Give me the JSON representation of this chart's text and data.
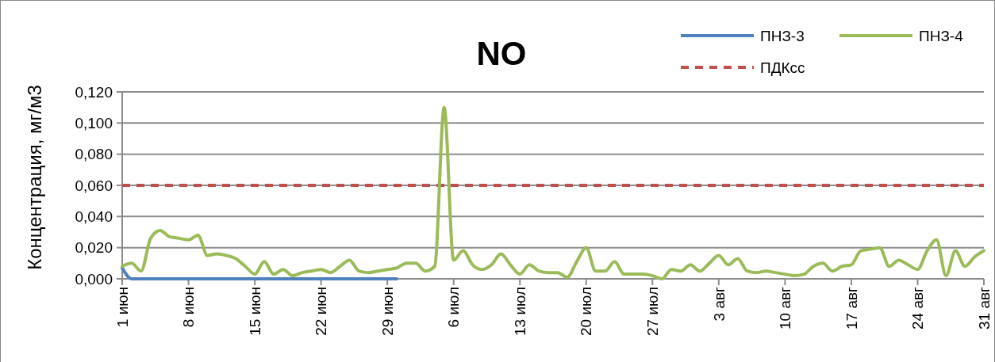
{
  "chart_data": {
    "type": "line",
    "title": "NO",
    "ylabel": "Концентрация, мг/м3",
    "x": [
      "--06-01",
      "--06-02",
      "--06-03",
      "--06-04",
      "--06-05",
      "--06-06",
      "--06-07",
      "--06-08",
      "--06-09",
      "--06-10",
      "--06-11",
      "--06-12",
      "--06-13",
      "--06-14",
      "--06-15",
      "--06-16",
      "--06-17",
      "--06-18",
      "--06-19",
      "--06-20",
      "--06-21",
      "--06-22",
      "--06-23",
      "--06-24",
      "--06-25",
      "--06-26",
      "--06-27",
      "--06-28",
      "--06-29",
      "--06-30",
      "--07-01",
      "--07-02",
      "--07-03",
      "--07-04",
      "--07-05",
      "--07-06",
      "--07-07",
      "--07-08",
      "--07-09",
      "--07-10",
      "--07-11",
      "--07-12",
      "--07-13",
      "--07-14",
      "--07-15",
      "--07-16",
      "--07-17",
      "--07-18",
      "--07-19",
      "--07-20",
      "--07-21",
      "--07-22",
      "--07-23",
      "--07-24",
      "--07-25",
      "--07-26",
      "--07-27",
      "--07-28",
      "--07-29",
      "--07-30",
      "--07-31",
      "--08-01",
      "--08-02",
      "--08-03",
      "--08-04",
      "--08-05",
      "--08-06",
      "--08-07",
      "--08-08",
      "--08-09",
      "--08-10",
      "--08-11",
      "--08-12",
      "--08-13",
      "--08-14",
      "--08-15",
      "--08-16",
      "--08-17",
      "--08-18",
      "--08-19",
      "--08-20",
      "--08-21",
      "--08-22",
      "--08-23",
      "--08-24",
      "--08-25",
      "--08-26",
      "--08-27",
      "--08-28",
      "--08-29",
      "--08-30",
      "--08-31"
    ],
    "series": [
      {
        "name": "ПНЗ-3",
        "color": "#4f81bd",
        "values": [
          0.007,
          0,
          0,
          0,
          0,
          0,
          0,
          0,
          0,
          0,
          0,
          0,
          0,
          0,
          0,
          0,
          0,
          0,
          0,
          0,
          0,
          0,
          0,
          0,
          0,
          0,
          0,
          0,
          0,
          0,
          null,
          null,
          null,
          null,
          null,
          null,
          null,
          null,
          null,
          null,
          null,
          null,
          null,
          null,
          null,
          null,
          null,
          null,
          null,
          null,
          null,
          null,
          null,
          null,
          null,
          null,
          null,
          null,
          null,
          null,
          null,
          null,
          null,
          null,
          null,
          null,
          null,
          null,
          null,
          null,
          null,
          null,
          null,
          null,
          null,
          null,
          null,
          null,
          null,
          null,
          null,
          null,
          null,
          null,
          null,
          null,
          null,
          null,
          null,
          null,
          null,
          null
        ]
      },
      {
        "name": "ПНЗ-4",
        "color": "#9bbb59",
        "values": [
          0.008,
          0.01,
          0.005,
          0.026,
          0.031,
          0.027,
          0.026,
          0.025,
          0.028,
          0.015,
          0.016,
          0.015,
          0.013,
          0.008,
          0.003,
          0.011,
          0.003,
          0.006,
          0.002,
          0.004,
          0.005,
          0.006,
          0.004,
          0.008,
          0.012,
          0.005,
          0.004,
          0.005,
          0.006,
          0.007,
          0.01,
          0.01,
          0.005,
          0.008,
          0.11,
          0.012,
          0.018,
          0.009,
          0.006,
          0.009,
          0.016,
          0.009,
          0.003,
          0.009,
          0.005,
          0.004,
          0.004,
          0.001,
          0.011,
          0.02,
          0.005,
          0.005,
          0.011,
          0.003,
          0.003,
          0.003,
          0.002,
          0.0,
          0.006,
          0.005,
          0.009,
          0.005,
          0.01,
          0.015,
          0.009,
          0.013,
          0.005,
          0.004,
          0.005,
          0.004,
          0.003,
          0.002,
          0.003,
          0.008,
          0.01,
          0.005,
          0.008,
          0.009,
          0.018,
          0.019,
          0.02,
          0.008,
          0.012,
          0.009,
          0.006,
          0.018,
          0.025,
          0.002,
          0.018,
          0.008,
          0.014,
          0.018
        ]
      }
    ],
    "ref_lines": [
      {
        "axis": "y",
        "value": 0.06,
        "label": "ПДКсс",
        "color": "#c0504d",
        "line_style": "dashed"
      }
    ],
    "xlim": [
      "--06-01",
      "--08-31"
    ],
    "xticks": [
      {
        "value": "--06-01",
        "label": "1 июн"
      },
      {
        "value": "--06-08",
        "label": "8 июн"
      },
      {
        "value": "--06-15",
        "label": "15 июн"
      },
      {
        "value": "--06-22",
        "label": "22 июн"
      },
      {
        "value": "--06-29",
        "label": "29 июн"
      },
      {
        "value": "--07-06",
        "label": "6 июл"
      },
      {
        "value": "--07-13",
        "label": "13 июл"
      },
      {
        "value": "--07-20",
        "label": "20 июл"
      },
      {
        "value": "--07-27",
        "label": "27 июл"
      },
      {
        "value": "--08-03",
        "label": "3 авг"
      },
      {
        "value": "--08-10",
        "label": "10 авг"
      },
      {
        "value": "--08-17",
        "label": "17 авг"
      },
      {
        "value": "--08-24",
        "label": "24 авг"
      },
      {
        "value": "--08-31",
        "label": "31 авг"
      }
    ],
    "ylim": [
      0,
      0.12
    ],
    "yticks": [
      {
        "value": 0,
        "label": "0,000"
      },
      {
        "value": 0.02,
        "label": "0,020"
      },
      {
        "value": 0.04,
        "label": "0,040"
      },
      {
        "value": 0.06,
        "label": "0,060"
      },
      {
        "value": 0.08,
        "label": "0,080"
      },
      {
        "value": 0.1,
        "label": "0,100"
      },
      {
        "value": 0.12,
        "label": "0,120"
      }
    ],
    "grid": "y",
    "legend": "top right",
    "marker": "none",
    "line_style": "solid"
  }
}
